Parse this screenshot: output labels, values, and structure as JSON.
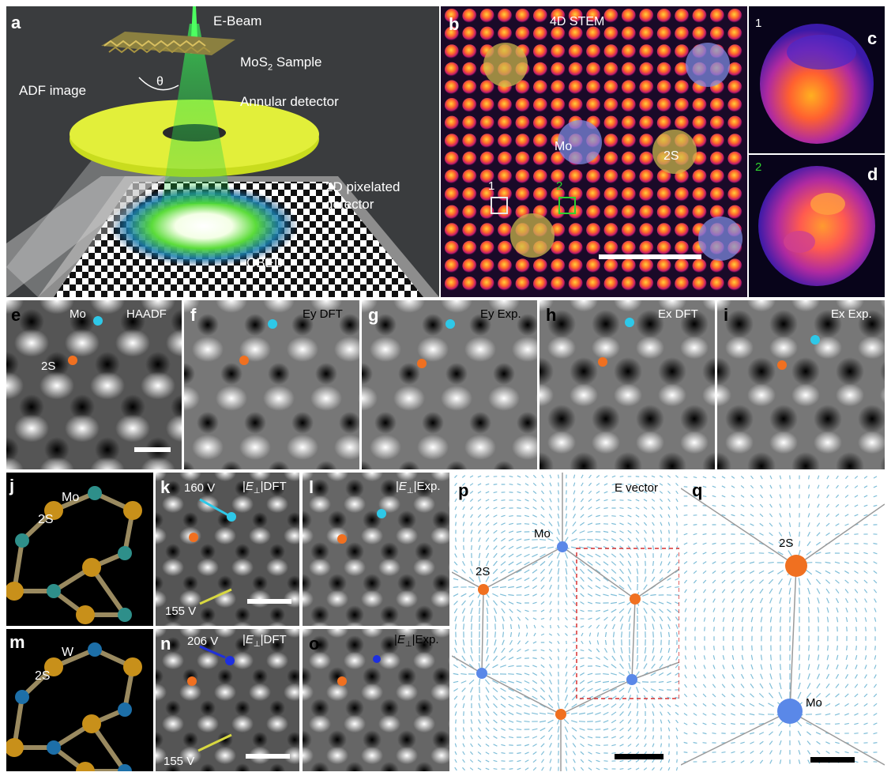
{
  "panel_a": {
    "label": "a",
    "texts": {
      "e_beam": "E-Beam",
      "sample_prefix": "MoS",
      "sample_sub": "2",
      "sample_suffix": " Sample",
      "theta": "θ",
      "adf_image": "ADF image",
      "annular_detector": "Annular detector",
      "pixelated_line1": "2D pixelated",
      "pixelated_line2": "detector",
      "cbed": "CBED"
    },
    "colors": {
      "background": "#3a3c3e",
      "beam": "#2fd24a",
      "ring": "#d6e62a"
    }
  },
  "panel_b": {
    "label": "b",
    "title": "4D STEM",
    "markers": {
      "mo": "Mo",
      "two_s": "2S",
      "box1": "1",
      "box2": "2"
    },
    "colors": {
      "mo_disc": "#7f8ee6",
      "s_disc": "#cfbb4c",
      "box1": "#e8e8e8",
      "box2": "#2fd12f"
    }
  },
  "panel_c": {
    "label": "c",
    "index": "1",
    "index_color": "#ffffff"
  },
  "panel_d": {
    "label": "d",
    "index": "2",
    "index_color": "#2fd12f"
  },
  "row2": [
    {
      "id": "e",
      "label": "e",
      "title": "HAADF",
      "mo": "Mo",
      "s": "2S"
    },
    {
      "id": "f",
      "label": "f",
      "title": "Ey DFT"
    },
    {
      "id": "g",
      "label": "g",
      "title": "Ey Exp."
    },
    {
      "id": "h",
      "label": "h",
      "title": "Ex DFT"
    },
    {
      "id": "i",
      "label": "i",
      "title": "Ex Exp."
    }
  ],
  "panel_j": {
    "label": "j",
    "metal": "Mo",
    "s": "2S"
  },
  "panel_k": {
    "label": "k",
    "title_pre": "|",
    "title_e": "E",
    "title_sub": "⊥",
    "title_post": "|DFT",
    "v_top": "160 V",
    "v_bottom": "155 V"
  },
  "panel_l": {
    "label": "l",
    "title_pre": "|",
    "title_e": "E",
    "title_sub": "⊥",
    "title_post": "|Exp."
  },
  "panel_m": {
    "label": "m",
    "metal": "W",
    "s": "2S"
  },
  "panel_n": {
    "label": "n",
    "title_pre": "|",
    "title_e": "E",
    "title_sub": "⊥",
    "title_post": "|DFT",
    "v_top": "206 V",
    "v_bottom": "155 V"
  },
  "panel_o": {
    "label": "o",
    "title_pre": "|",
    "title_e": "E",
    "title_sub": "⊥",
    "title_post": "|Exp."
  },
  "panel_p": {
    "label": "p",
    "title": "E vector",
    "mo": "Mo",
    "s": "2S"
  },
  "panel_q": {
    "label": "q",
    "s": "2S",
    "mo": "Mo"
  },
  "colors": {
    "mo_marker": "#2ec8e8",
    "s_marker": "#f07020",
    "w_marker": "#1d2fe0",
    "arrow": "#4aa3c8",
    "mo_atom_model": "#2e8f8a",
    "w_atom_model": "#1d6fa8",
    "s_atom_model": "#c8901a"
  }
}
